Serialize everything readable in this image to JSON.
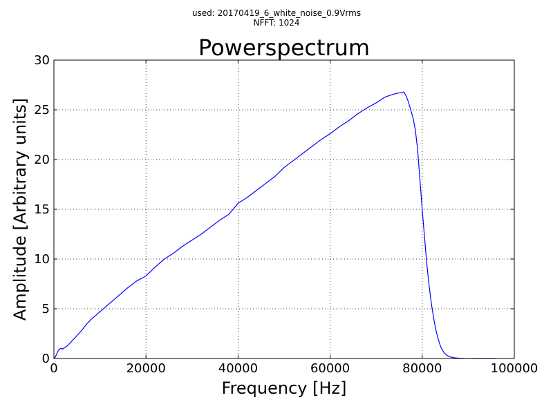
{
  "header": {
    "used_label": "used: 20170419_6_white_noise_0.9Vrms",
    "nfft_label": "NFFT: 1024"
  },
  "chart_data": {
    "type": "line",
    "title": "Powerspectrum",
    "xlabel": "Frequency [Hz]",
    "ylabel": "Amplitude [Arbitrary units]",
    "xlim": [
      0,
      100000
    ],
    "ylim": [
      0,
      30
    ],
    "xticks": [
      0,
      20000,
      40000,
      60000,
      80000,
      100000
    ],
    "xtick_labels": [
      "0",
      "20000",
      "40000",
      "60000",
      "80000",
      "100000"
    ],
    "yticks": [
      0,
      5,
      10,
      15,
      20,
      25,
      30
    ],
    "ytick_labels": [
      "0",
      "5",
      "10",
      "15",
      "20",
      "25",
      "30"
    ],
    "grid": true,
    "grid_style": "dotted",
    "legend": false,
    "line_color": "#0000ff",
    "series": [
      {
        "x": [
          0,
          300,
          600,
          1000,
          1400,
          2000,
          3000,
          4000,
          5000,
          6000,
          7000,
          8000,
          9000,
          10000,
          12000,
          14000,
          16000,
          18000,
          20000,
          22000,
          24000,
          26000,
          28000,
          30000,
          32000,
          34000,
          36000,
          38000,
          40000,
          42000,
          44000,
          46000,
          48000,
          50000,
          52000,
          54000,
          56000,
          58000,
          60000,
          62000,
          64000,
          66000,
          68000,
          70000,
          72000,
          74000,
          76000,
          76500,
          77000,
          77500,
          78000,
          78500,
          79000,
          79500,
          80000,
          80500,
          81000,
          81500,
          82000,
          82500,
          83000,
          83500,
          84000,
          84500,
          85000,
          85500,
          86000,
          87000,
          88000,
          89000,
          90000,
          92000,
          94000,
          96000
        ],
        "y": [
          0,
          0.15,
          0.45,
          0.85,
          1.0,
          0.98,
          1.3,
          1.8,
          2.3,
          2.8,
          3.4,
          3.9,
          4.3,
          4.7,
          5.5,
          6.3,
          7.1,
          7.8,
          8.3,
          9.2,
          10.0,
          10.6,
          11.3,
          11.9,
          12.5,
          13.2,
          13.9,
          14.5,
          15.6,
          16.2,
          16.9,
          17.6,
          18.3,
          19.2,
          19.9,
          20.6,
          21.3,
          22.0,
          22.6,
          23.3,
          23.9,
          24.6,
          25.2,
          25.7,
          26.3,
          26.6,
          26.8,
          26.4,
          25.8,
          25.0,
          24.2,
          23.0,
          21.0,
          18.0,
          15.0,
          12.2,
          9.5,
          7.3,
          5.5,
          4.0,
          2.8,
          1.9,
          1.2,
          0.75,
          0.45,
          0.28,
          0.17,
          0.07,
          0.03,
          0.01,
          0.005,
          0.0,
          0.0,
          0.0
        ]
      }
    ]
  }
}
